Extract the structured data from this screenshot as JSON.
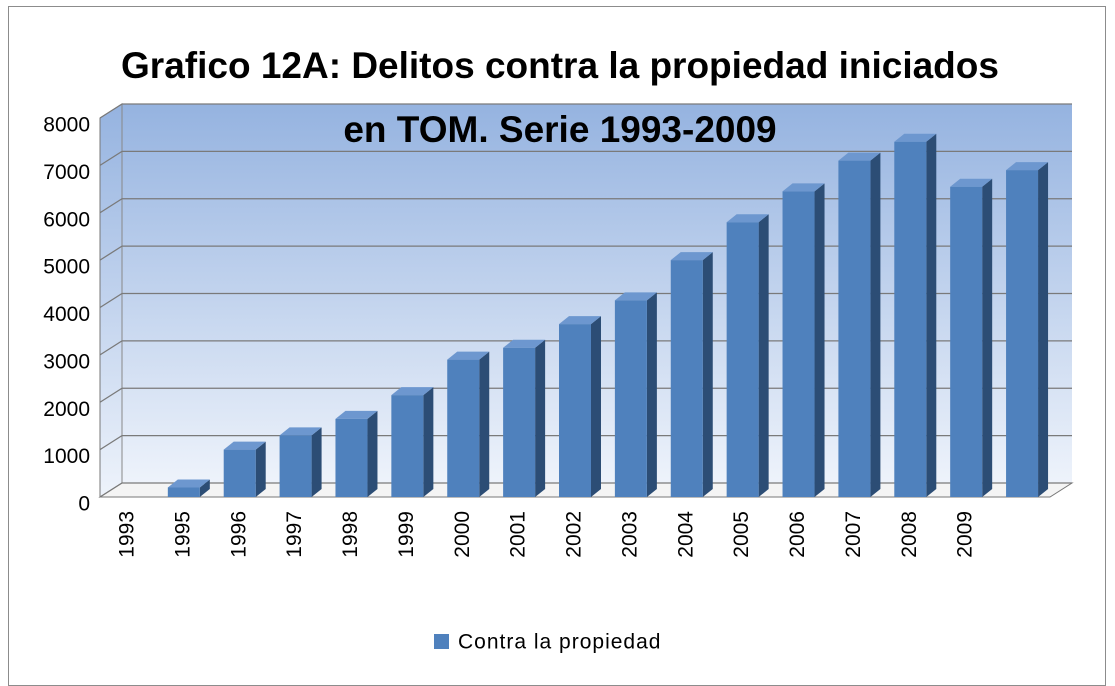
{
  "chart_data": {
    "type": "bar3d",
    "title": "Grafico 12A: Delitos contra la propiedad iniciados en TOM. Serie 1993-2009",
    "categories": [
      "1993",
      "1995",
      "1996",
      "1997",
      "1998",
      "1999",
      "2000",
      "2001",
      "2002",
      "2003",
      "2004",
      "2005",
      "2006",
      "2007",
      "2008",
      "2009",
      null
    ],
    "series": [
      {
        "name": "Contra la propiedad",
        "color": "#4f81bd",
        "values": [
          null,
          200,
          1000,
          1300,
          1650,
          2150,
          2900,
          3150,
          3650,
          4150,
          5000,
          5800,
          6450,
          7100,
          7500,
          6550,
          6900
        ]
      }
    ],
    "ylim": [
      0,
      8000
    ],
    "yticks": [
      0,
      1000,
      2000,
      3000,
      4000,
      5000,
      6000,
      7000,
      8000
    ],
    "grid": true,
    "legend": "bottom"
  }
}
